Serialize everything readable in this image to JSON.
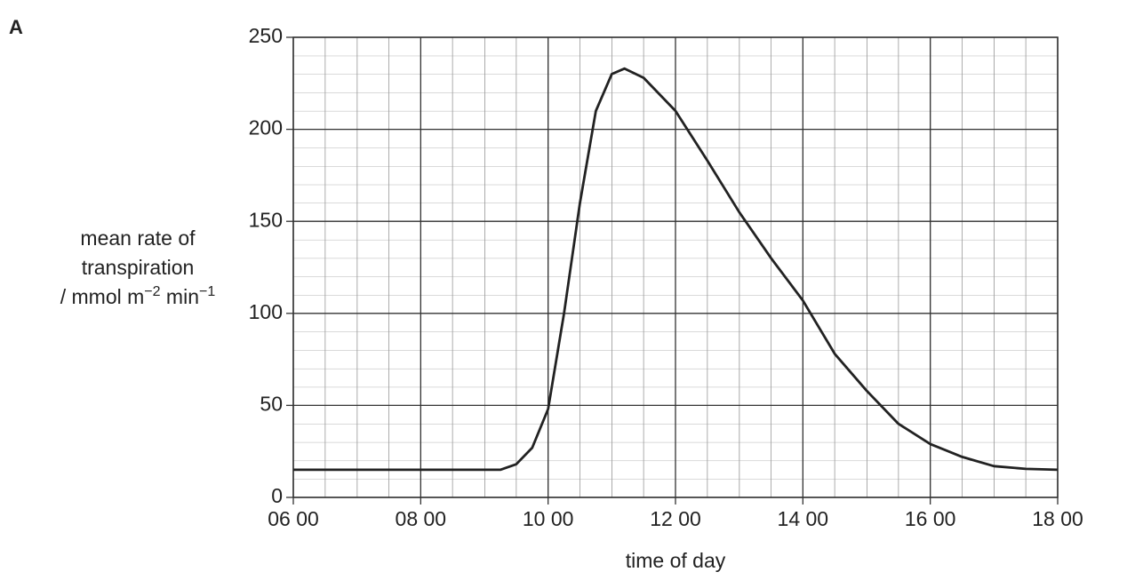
{
  "panel_label": "A",
  "chart_data": {
    "type": "line",
    "xlabel": "time of day",
    "ylabel": {
      "lines": [
        "mean rate of",
        "transpiration"
      ],
      "unit": [
        "/ mmol m",
        "−2",
        " min",
        "−1"
      ]
    },
    "x": [
      6,
      7,
      8,
      9,
      9.25,
      9.5,
      9.75,
      10,
      10.25,
      10.5,
      10.75,
      11,
      11.2,
      11.5,
      12,
      12.5,
      13,
      13.5,
      14,
      14.5,
      15,
      15.5,
      16,
      16.5,
      17,
      17.5,
      18
    ],
    "series": [
      {
        "color": "#222222",
        "values": [
          15,
          15,
          15,
          15,
          15,
          18,
          27,
          48,
          100,
          160,
          210,
          230,
          233,
          228,
          210,
          183,
          155,
          130,
          107,
          78,
          58,
          40,
          29,
          22,
          17,
          15.5,
          15
        ]
      }
    ],
    "xlim": [
      6,
      18
    ],
    "ylim": [
      0,
      250
    ],
    "xticks": [
      {
        "value": 6,
        "label": "06 00"
      },
      {
        "value": 8,
        "label": "08 00"
      },
      {
        "value": 10,
        "label": "10 00"
      },
      {
        "value": 12,
        "label": "12 00"
      },
      {
        "value": 14,
        "label": "14 00"
      },
      {
        "value": 16,
        "label": "16 00"
      },
      {
        "value": 18,
        "label": "18 00"
      }
    ],
    "yticks": [
      0,
      50,
      100,
      150,
      200,
      250
    ],
    "grid": true
  }
}
